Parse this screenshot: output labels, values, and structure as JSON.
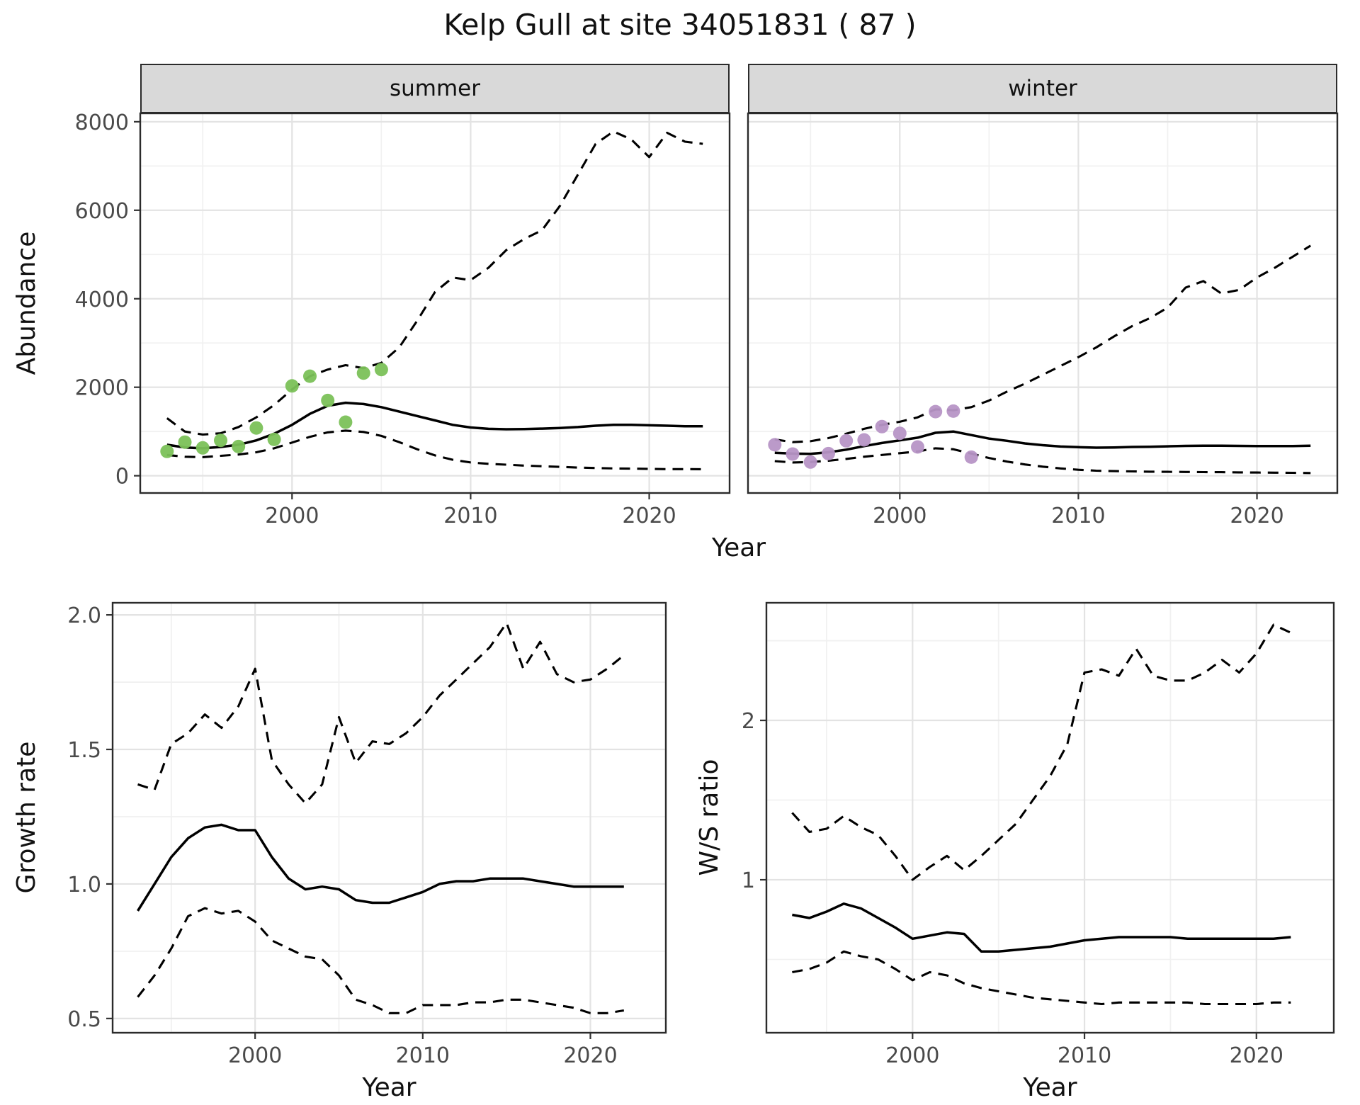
{
  "title": "Kelp Gull at site 34051831 ( 87 )",
  "colors": {
    "line": "#000000",
    "panel_border": "#2b2b2b",
    "grid_major": "#e3e3e3",
    "grid_minor": "#f1f1f1",
    "tick": "#333333",
    "tick_text": "#4a4a4a",
    "strip_fill": "#d9d9d9",
    "summer_points": "#7bc158",
    "winter_points": "#b795c6"
  },
  "chart_data": [
    {
      "id": "abundance",
      "type": "line",
      "xlabel": "Year",
      "ylabel": "Abundance",
      "xlim": [
        1991.5,
        2024.5
      ],
      "ylim": [
        -390,
        8190
      ],
      "xticks": [
        2000,
        2010,
        2020
      ],
      "xticks_minor": [
        1995,
        2005,
        2015
      ],
      "xtick_labels": [
        "2000",
        "2010",
        "2020"
      ],
      "yticks": [
        0,
        2000,
        4000,
        6000,
        8000
      ],
      "yticks_minor": [
        1000,
        3000,
        5000,
        7000
      ],
      "ytick_labels": [
        "0",
        "2000",
        "4000",
        "6000",
        "8000"
      ],
      "years": [
        1993,
        1994,
        1995,
        1996,
        1997,
        1998,
        1999,
        2000,
        2001,
        2002,
        2003,
        2004,
        2005,
        2006,
        2007,
        2008,
        2009,
        2010,
        2011,
        2012,
        2013,
        2014,
        2015,
        2016,
        2017,
        2018,
        2019,
        2020,
        2021,
        2022,
        2023
      ],
      "panels": [
        {
          "facet": "summer",
          "point_color": "#7bc158",
          "observed": {
            "years": [
              1993,
              1994,
              1995,
              1996,
              1997,
              1998,
              1999,
              2000,
              2001,
              2002,
              2003,
              2004,
              2005
            ],
            "values": [
              550,
              760,
              630,
              800,
              660,
              1080,
              820,
              2030,
              2250,
              1700,
              1210,
              2320,
              2400
            ]
          },
          "fit": [
            700,
            640,
            620,
            650,
            700,
            800,
            950,
            1150,
            1400,
            1580,
            1650,
            1620,
            1550,
            1450,
            1350,
            1250,
            1150,
            1090,
            1060,
            1050,
            1055,
            1065,
            1080,
            1100,
            1130,
            1150,
            1150,
            1140,
            1130,
            1120,
            1120
          ],
          "upper_ci": [
            1300,
            1000,
            930,
            960,
            1100,
            1320,
            1600,
            1950,
            2250,
            2400,
            2500,
            2430,
            2550,
            2900,
            3500,
            4150,
            4480,
            4420,
            4700,
            5100,
            5350,
            5550,
            6100,
            6800,
            7500,
            7780,
            7600,
            7200,
            7750,
            7550,
            7500
          ],
          "lower_ci": [
            470,
            430,
            420,
            450,
            480,
            530,
            620,
            750,
            880,
            980,
            1020,
            990,
            900,
            760,
            600,
            460,
            360,
            300,
            270,
            250,
            230,
            215,
            200,
            185,
            175,
            165,
            160,
            155,
            150,
            150,
            148
          ]
        },
        {
          "facet": "winter",
          "point_color": "#b795c6",
          "observed": {
            "years": [
              1993,
              1994,
              1995,
              1996,
              1997,
              1998,
              1999,
              2000,
              2001,
              2002,
              2003,
              2004
            ],
            "values": [
              700,
              490,
              310,
              500,
              790,
              810,
              1110,
              960,
              650,
              1450,
              1460,
              420
            ]
          },
          "fit": [
            520,
            500,
            495,
            530,
            590,
            670,
            740,
            800,
            860,
            970,
            1000,
            920,
            840,
            790,
            730,
            690,
            660,
            645,
            635,
            640,
            650,
            655,
            665,
            675,
            680,
            680,
            675,
            670,
            670,
            670,
            680
          ],
          "upper_ci": [
            820,
            760,
            780,
            850,
            950,
            1060,
            1150,
            1220,
            1320,
            1500,
            1480,
            1550,
            1700,
            1900,
            2080,
            2280,
            2480,
            2680,
            2900,
            3150,
            3380,
            3560,
            3800,
            4250,
            4400,
            4120,
            4200,
            4480,
            4700,
            4950,
            5200
          ],
          "lower_ci": [
            330,
            300,
            310,
            340,
            380,
            430,
            470,
            510,
            550,
            620,
            600,
            500,
            400,
            320,
            255,
            205,
            165,
            135,
            115,
            105,
            98,
            92,
            88,
            85,
            82,
            80,
            76,
            72,
            70,
            66,
            62
          ]
        }
      ]
    },
    {
      "id": "growth_rate",
      "type": "line",
      "xlabel": "Year",
      "ylabel": "Growth rate",
      "xlim": [
        1991.5,
        2024.5
      ],
      "ylim": [
        0.447,
        2.045
      ],
      "xticks": [
        2000,
        2010,
        2020
      ],
      "xticks_minor": [
        1995,
        2005,
        2015
      ],
      "xtick_labels": [
        "2000",
        "2010",
        "2020"
      ],
      "yticks": [
        0.5,
        1.0,
        1.5,
        2.0
      ],
      "yticks_minor": [
        0.75,
        1.25,
        1.75
      ],
      "ytick_labels": [
        "0.5",
        "1.0",
        "1.5",
        "2.0"
      ],
      "years": [
        1993,
        1994,
        1995,
        1996,
        1997,
        1998,
        1999,
        2000,
        2001,
        2002,
        2003,
        2004,
        2005,
        2006,
        2007,
        2008,
        2009,
        2010,
        2011,
        2012,
        2013,
        2014,
        2015,
        2016,
        2017,
        2018,
        2019,
        2020,
        2021,
        2022
      ],
      "fit": [
        0.9,
        1.0,
        1.1,
        1.17,
        1.21,
        1.22,
        1.2,
        1.2,
        1.1,
        1.02,
        0.98,
        0.99,
        0.98,
        0.94,
        0.93,
        0.93,
        0.95,
        0.97,
        1.0,
        1.01,
        1.01,
        1.02,
        1.02,
        1.02,
        1.01,
        1.0,
        0.99,
        0.99,
        0.99,
        0.99
      ],
      "upper_ci": [
        1.37,
        1.35,
        1.52,
        1.56,
        1.63,
        1.58,
        1.66,
        1.8,
        1.46,
        1.37,
        1.3,
        1.37,
        1.62,
        1.45,
        1.53,
        1.52,
        1.56,
        1.62,
        1.7,
        1.76,
        1.82,
        1.88,
        1.97,
        1.8,
        1.9,
        1.78,
        1.75,
        1.76,
        1.8,
        1.85
      ],
      "lower_ci": [
        0.58,
        0.66,
        0.76,
        0.88,
        0.91,
        0.89,
        0.9,
        0.86,
        0.79,
        0.76,
        0.73,
        0.72,
        0.66,
        0.57,
        0.55,
        0.52,
        0.52,
        0.55,
        0.55,
        0.55,
        0.56,
        0.56,
        0.57,
        0.57,
        0.56,
        0.55,
        0.54,
        0.52,
        0.52,
        0.53
      ]
    },
    {
      "id": "ws_ratio",
      "type": "line",
      "xlabel": "Year",
      "ylabel": "W/S ratio",
      "xlim": [
        1991.5,
        2024.5
      ],
      "ylim": [
        0.04,
        2.738
      ],
      "xticks": [
        2000,
        2010,
        2020
      ],
      "xticks_minor": [
        1995,
        2005,
        2015
      ],
      "xtick_labels": [
        "2000",
        "2010",
        "2020"
      ],
      "yticks": [
        1,
        2
      ],
      "yticks_minor": [
        0.5,
        1.5,
        2.5
      ],
      "ytick_labels": [
        "1",
        "2"
      ],
      "years": [
        1993,
        1994,
        1995,
        1996,
        1997,
        1998,
        1999,
        2000,
        2001,
        2002,
        2003,
        2004,
        2005,
        2006,
        2007,
        2008,
        2009,
        2010,
        2011,
        2012,
        2013,
        2014,
        2015,
        2016,
        2017,
        2018,
        2019,
        2020,
        2021,
        2022
      ],
      "fit": [
        0.78,
        0.76,
        0.8,
        0.85,
        0.82,
        0.76,
        0.7,
        0.63,
        0.65,
        0.67,
        0.66,
        0.55,
        0.55,
        0.56,
        0.57,
        0.58,
        0.6,
        0.62,
        0.63,
        0.64,
        0.64,
        0.64,
        0.64,
        0.63,
        0.63,
        0.63,
        0.63,
        0.63,
        0.63,
        0.64
      ],
      "upper_ci": [
        1.42,
        1.3,
        1.32,
        1.4,
        1.33,
        1.28,
        1.15,
        1.0,
        1.08,
        1.15,
        1.06,
        1.15,
        1.25,
        1.35,
        1.5,
        1.65,
        1.85,
        2.3,
        2.32,
        2.28,
        2.45,
        2.28,
        2.25,
        2.25,
        2.3,
        2.38,
        2.3,
        2.42,
        2.6,
        2.55
      ],
      "lower_ci": [
        0.42,
        0.44,
        0.48,
        0.55,
        0.52,
        0.5,
        0.44,
        0.37,
        0.42,
        0.4,
        0.35,
        0.32,
        0.3,
        0.28,
        0.26,
        0.25,
        0.24,
        0.23,
        0.22,
        0.23,
        0.23,
        0.23,
        0.23,
        0.23,
        0.22,
        0.22,
        0.22,
        0.22,
        0.23,
        0.23
      ]
    }
  ]
}
